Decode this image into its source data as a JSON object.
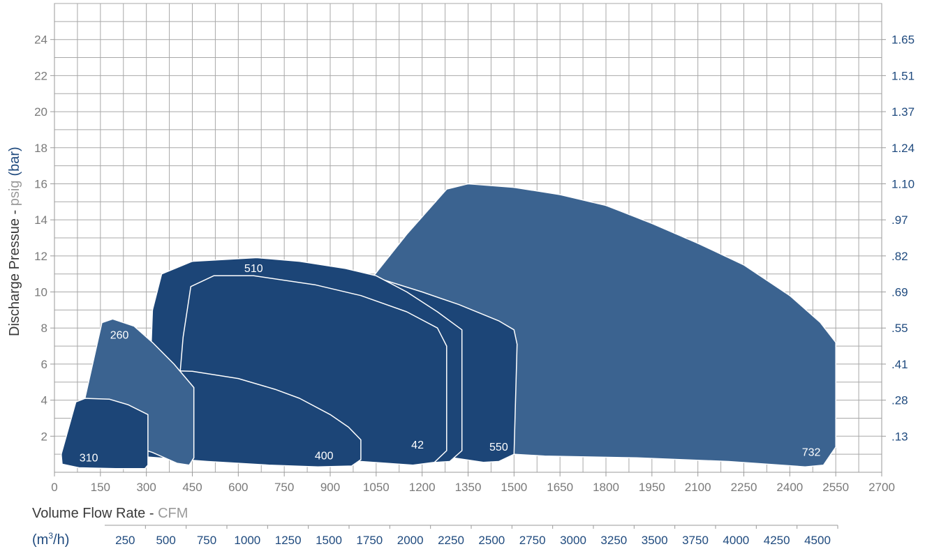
{
  "chart_data": {
    "type": "area",
    "title": "",
    "xlabel": {
      "main": "Volume Flow Rate - ",
      "unit": "CFM"
    },
    "ylabel": {
      "main": "Discharge Pressue - ",
      "unit": "psig",
      "alt_unit": "(bar)"
    },
    "x_metric_label": {
      "base": "(m",
      "sup": "3",
      "rest": "/h)"
    },
    "xlim": [
      0,
      2700
    ],
    "ylim": [
      0,
      26
    ],
    "grid": true,
    "x_ticks": [
      0,
      150,
      300,
      450,
      600,
      750,
      900,
      1050,
      1200,
      1350,
      1500,
      1650,
      1800,
      1950,
      2100,
      2250,
      2400,
      2550,
      2700
    ],
    "x_tick_labels": [
      "0",
      "150",
      "300",
      "450",
      "600",
      "750",
      "900",
      "1050",
      "1200",
      "1350",
      "1500",
      "1650",
      "1800",
      "1950",
      "2100",
      "2250",
      "2400",
      "2550",
      "2700"
    ],
    "y_ticks": [
      2,
      4,
      6,
      8,
      10,
      12,
      14,
      16,
      18,
      20,
      22,
      24
    ],
    "y_tick_labels": [
      "2",
      "4",
      "6",
      "8",
      "10",
      "12",
      "14",
      "16",
      "18",
      "20",
      "22",
      "24"
    ],
    "y_right_tick_labels": [
      ".13",
      ".28",
      ".41",
      ".55",
      ".69",
      ".82",
      ".97",
      "1.10",
      "1.24",
      "1.37",
      "1.51",
      "1.65"
    ],
    "x_metric_ticks": [
      "250",
      "500",
      "750",
      "1000",
      "1250",
      "1500",
      "1750",
      "2000",
      "2250",
      "2500",
      "2750",
      "3000",
      "3250",
      "3500",
      "3750",
      "4000",
      "4250",
      "4500"
    ],
    "colors": {
      "dark_region": "#1c4577",
      "light_region": "#3b6390",
      "outline": "#ffffff",
      "axis_blue": "#1f4a7e"
    },
    "series": [
      {
        "name": "732",
        "shade": "light",
        "points": [
          [
            1000,
            10
          ],
          [
            1150,
            13.2
          ],
          [
            1280,
            15.7
          ],
          [
            1350,
            16
          ],
          [
            1500,
            15.8
          ],
          [
            1650,
            15.4
          ],
          [
            1800,
            14.8
          ],
          [
            1950,
            13.8
          ],
          [
            2100,
            12.7
          ],
          [
            2250,
            11.5
          ],
          [
            2400,
            9.8
          ],
          [
            2500,
            8.3
          ],
          [
            2550,
            7.2
          ],
          [
            2550,
            1.4
          ],
          [
            2510,
            0.4
          ],
          [
            2450,
            0.3
          ],
          [
            2200,
            0.6
          ],
          [
            1900,
            0.8
          ],
          [
            1600,
            0.9
          ],
          [
            1400,
            1.1
          ],
          [
            1000,
            1.4
          ]
        ]
      },
      {
        "name": "550",
        "shade": "dark",
        "points": [
          [
            435,
            11.5
          ],
          [
            660,
            11.9
          ],
          [
            850,
            11.6
          ],
          [
            1050,
            10.8
          ],
          [
            1200,
            10
          ],
          [
            1320,
            9.3
          ],
          [
            1450,
            8.4
          ],
          [
            1500,
            7.9
          ],
          [
            1510,
            7.1
          ],
          [
            1500,
            1
          ],
          [
            1450,
            0.6
          ],
          [
            1400,
            0.55
          ],
          [
            1300,
            0.8
          ],
          [
            1100,
            1
          ],
          [
            800,
            1.1
          ],
          [
            480,
            1.2
          ],
          [
            420,
            1.5
          ]
        ]
      },
      {
        "name": "510",
        "shade": "dark",
        "points": [
          [
            350,
            11
          ],
          [
            450,
            11.7
          ],
          [
            660,
            11.9
          ],
          [
            800,
            11.7
          ],
          [
            950,
            11.3
          ],
          [
            1050,
            10.9
          ],
          [
            1150,
            10
          ],
          [
            1250,
            8.9
          ],
          [
            1330,
            7.9
          ],
          [
            1330,
            1.2
          ],
          [
            1290,
            0.6
          ],
          [
            1200,
            0.5
          ],
          [
            1000,
            0.7
          ],
          [
            700,
            0.9
          ],
          [
            420,
            1
          ],
          [
            320,
            1.6
          ],
          [
            310,
            4.5
          ],
          [
            320,
            9
          ]
        ]
      },
      {
        "name": "42",
        "shade": "dark",
        "points": [
          [
            445,
            10.3
          ],
          [
            520,
            10.9
          ],
          [
            650,
            10.9
          ],
          [
            850,
            10.4
          ],
          [
            1000,
            9.8
          ],
          [
            1150,
            8.9
          ],
          [
            1250,
            8
          ],
          [
            1280,
            7
          ],
          [
            1280,
            1.2
          ],
          [
            1240,
            0.55
          ],
          [
            1170,
            0.4
          ],
          [
            1000,
            0.6
          ],
          [
            700,
            0.7
          ],
          [
            500,
            0.8
          ],
          [
            400,
            1
          ],
          [
            395,
            2.5
          ],
          [
            420,
            7.5
          ]
        ]
      },
      {
        "name": "400",
        "shade": "dark",
        "points": [
          [
            200,
            5.4
          ],
          [
            270,
            5.7
          ],
          [
            450,
            5.6
          ],
          [
            600,
            5.2
          ],
          [
            720,
            4.6
          ],
          [
            800,
            4.1
          ],
          [
            900,
            3.2
          ],
          [
            960,
            2.5
          ],
          [
            1000,
            1.8
          ],
          [
            1000,
            0.7
          ],
          [
            970,
            0.35
          ],
          [
            860,
            0.3
          ],
          [
            700,
            0.4
          ],
          [
            500,
            0.6
          ],
          [
            300,
            0.85
          ],
          [
            180,
            0.9
          ],
          [
            155,
            1.2
          ],
          [
            160,
            4
          ]
        ]
      },
      {
        "name": "260",
        "shade": "light",
        "points": [
          [
            155,
            8.3
          ],
          [
            190,
            8.5
          ],
          [
            260,
            8.1
          ],
          [
            320,
            7.2
          ],
          [
            390,
            6
          ],
          [
            455,
            4.7
          ],
          [
            455,
            0.8
          ],
          [
            440,
            0.4
          ],
          [
            400,
            0.5
          ],
          [
            320,
            1.1
          ],
          [
            230,
            1.6
          ],
          [
            170,
            1.6
          ],
          [
            90,
            2
          ],
          [
            85,
            3
          ]
        ]
      },
      {
        "name": "310",
        "shade": "dark",
        "points": [
          [
            70,
            3.9
          ],
          [
            100,
            4.1
          ],
          [
            180,
            4.05
          ],
          [
            240,
            3.75
          ],
          [
            305,
            3.2
          ],
          [
            305,
            0.4
          ],
          [
            295,
            0.2
          ],
          [
            200,
            0.2
          ],
          [
            80,
            0.25
          ],
          [
            25,
            0.45
          ],
          [
            22,
            1
          ]
        ]
      }
    ]
  }
}
